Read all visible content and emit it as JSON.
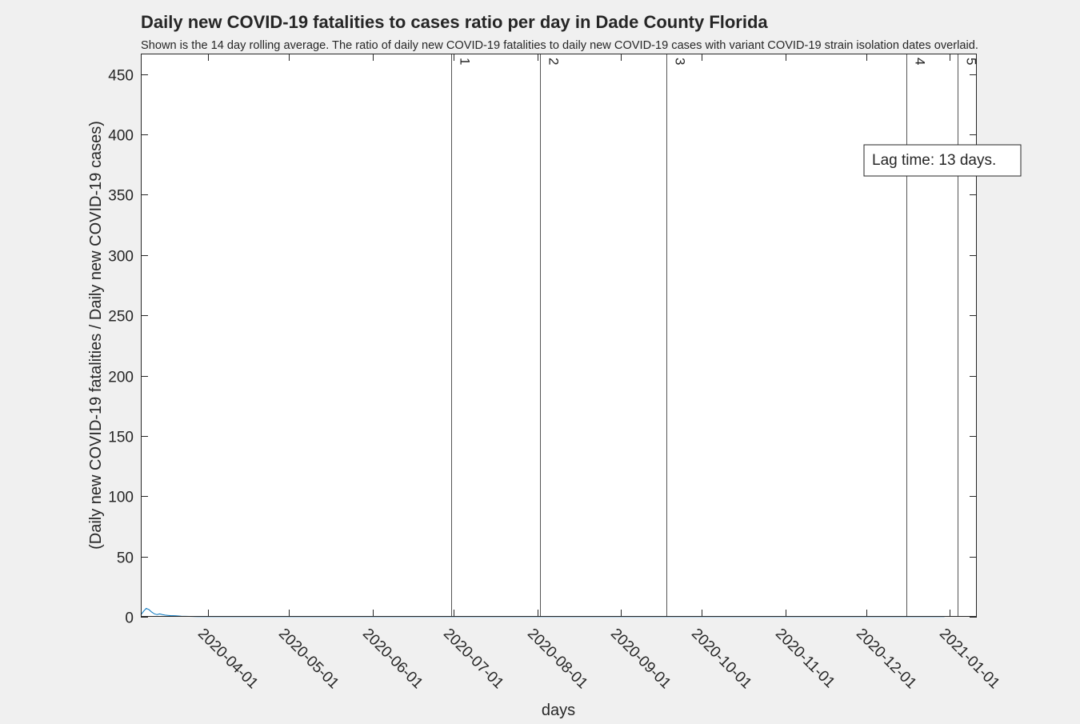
{
  "chart_data": {
    "type": "line",
    "title": "Daily new COVID-19 fatalities to cases ratio per day in Dade County Florida",
    "subtitle": "Shown is the 14 day rolling average. The ratio of daily new COVID-19 fatalities to daily new COVID-19 cases with variant COVID-19 strain isolation dates overlaid.",
    "xlabel": "days",
    "ylabel": "(Daily new COVID-19 fatalities / Daily new COVID-19 cases)",
    "xlim": [
      "2020-03-07",
      "2021-01-11"
    ],
    "ylim": [
      0,
      467
    ],
    "yticks": [
      0,
      50,
      100,
      150,
      200,
      250,
      300,
      350,
      400,
      450
    ],
    "xticks": [
      "2020-04-01",
      "2020-05-01",
      "2020-06-01",
      "2020-07-01",
      "2020-08-01",
      "2020-09-01",
      "2020-10-01",
      "2020-11-01",
      "2020-12-01",
      "2021-01-01"
    ],
    "grid": false,
    "series": [
      {
        "color": "#0072bd",
        "x": [
          "2020-03-07",
          "2020-03-08",
          "2020-03-09",
          "2020-03-10",
          "2020-03-11",
          "2020-03-12",
          "2020-03-13",
          "2020-03-14",
          "2020-03-15",
          "2020-03-16",
          "2020-03-17",
          "2020-03-18",
          "2020-03-20",
          "2020-03-22",
          "2020-03-25",
          "2020-03-28",
          "2020-04-01",
          "2020-05-01",
          "2020-06-01",
          "2020-07-01",
          "2020-08-01",
          "2020-09-01",
          "2020-10-01",
          "2020-11-01",
          "2020-12-01",
          "2020-12-30"
        ],
        "y": [
          1.5,
          4.5,
          7.0,
          6.0,
          4.0,
          2.5,
          1.8,
          2.4,
          1.8,
          1.4,
          1.2,
          1.0,
          0.8,
          0.5,
          0.3,
          0.2,
          0.2,
          0.2,
          0.2,
          0.2,
          0.2,
          0.2,
          0.2,
          0.2,
          0.2,
          0.2
        ]
      }
    ],
    "variant_lines": [
      {
        "label": "1",
        "date": "2020-06-30"
      },
      {
        "label": "2",
        "date": "2020-08-02"
      },
      {
        "label": "3",
        "date": "2020-09-18"
      },
      {
        "label": "4",
        "date": "2020-12-16"
      },
      {
        "label": "5",
        "date": "2021-01-04"
      }
    ],
    "annotation": "Lag time: 13 days."
  }
}
